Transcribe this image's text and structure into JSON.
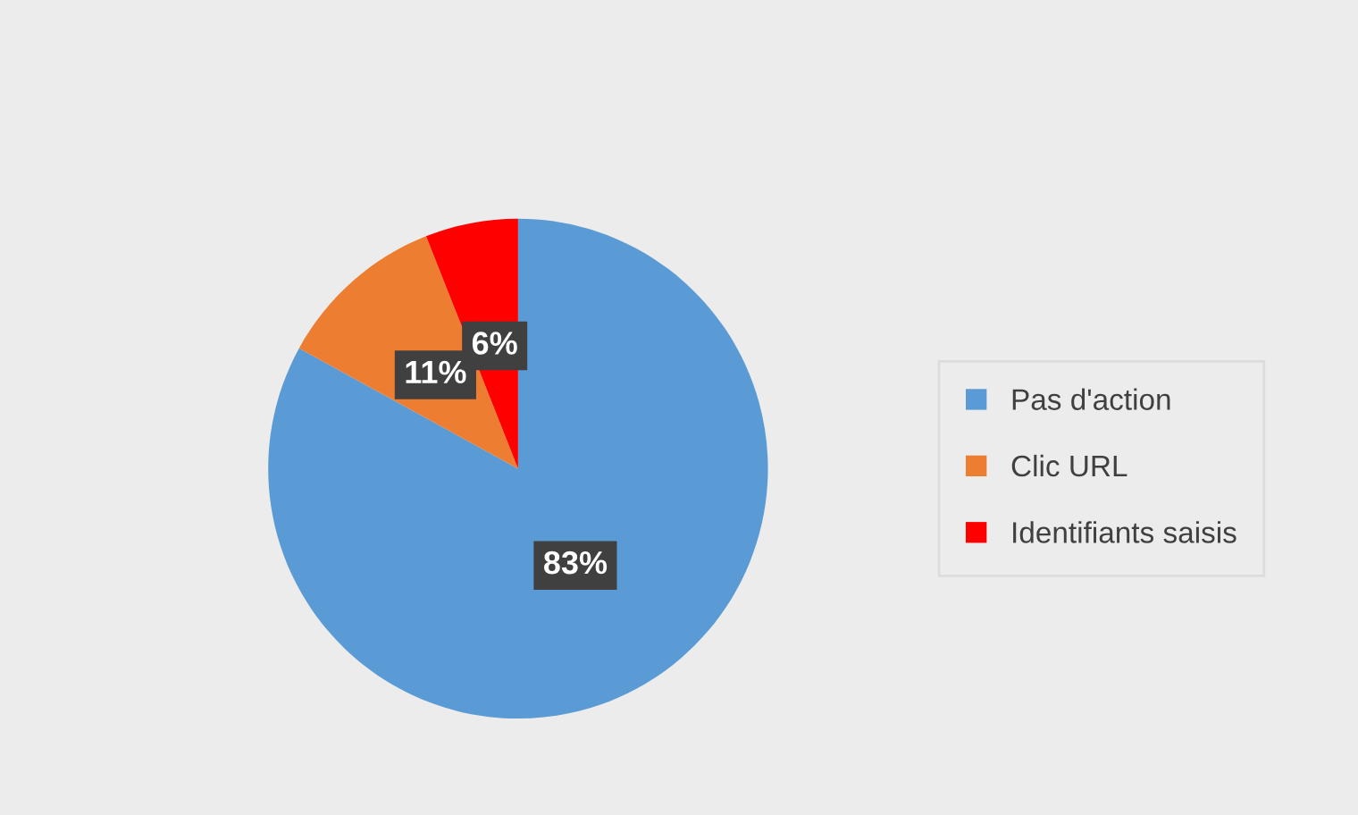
{
  "chart_data": {
    "type": "pie",
    "categories": [
      "Pas d'action",
      "Clic URL",
      "Identifiants saisis"
    ],
    "values": [
      83,
      11,
      6
    ],
    "colors": [
      "#5b9bd5",
      "#ed7d31",
      "#ff0000"
    ],
    "value_labels": [
      "83%",
      "11%",
      "6%"
    ],
    "legend": "right"
  }
}
